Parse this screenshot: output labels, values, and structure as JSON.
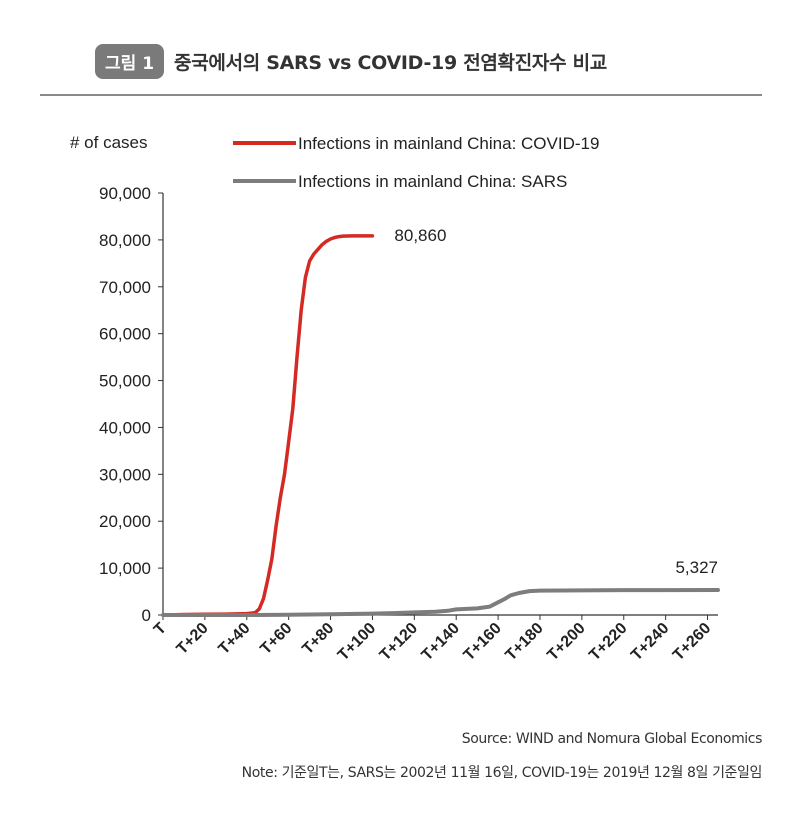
{
  "figure": {
    "badge": "그림 1",
    "title": "중국에서의 SARS vs COVID-19 전염확진자수 비교"
  },
  "chart_data": {
    "type": "line",
    "ylabel": "# of cases",
    "ylim": [
      0,
      90000
    ],
    "xlim": [
      0,
      265
    ],
    "y_ticks": [
      "0",
      "10,000",
      "20,000",
      "30,000",
      "40,000",
      "50,000",
      "60,000",
      "70,000",
      "80,000",
      "90,000"
    ],
    "x_ticks": [
      "T",
      "T+20",
      "T+40",
      "T+60",
      "T+80",
      "T+100",
      "T+120",
      "T+140",
      "T+160",
      "T+180",
      "T+200",
      "T+220",
      "T+240",
      "T+260"
    ],
    "legend": "top-center",
    "grid": false,
    "series": [
      {
        "name": "Infections in mainland China: COVID-19",
        "color": "#d42a24",
        "x": [
          0,
          10,
          20,
          30,
          40,
          44,
          46,
          48,
          50,
          52,
          54,
          56,
          58,
          60,
          62,
          64,
          66,
          68,
          70,
          72,
          74,
          76,
          78,
          80,
          82,
          84,
          86,
          88,
          90,
          95,
          100
        ],
        "y": [
          0,
          100,
          150,
          200,
          300,
          500,
          1300,
          3500,
          7500,
          12000,
          19000,
          25000,
          30000,
          37000,
          44000,
          55000,
          65000,
          72000,
          75500,
          77000,
          78000,
          79000,
          79700,
          80200,
          80500,
          80700,
          80800,
          80830,
          80850,
          80855,
          80860
        ],
        "end_label": "80,860"
      },
      {
        "name": "Infections in mainland China: SARS",
        "color": "#7d7d7d",
        "x": [
          0,
          40,
          60,
          80,
          100,
          110,
          120,
          130,
          136,
          140,
          145,
          150,
          156,
          160,
          163,
          166,
          170,
          175,
          180,
          200,
          220,
          240,
          265
        ],
        "y": [
          0,
          0,
          50,
          150,
          300,
          400,
          550,
          700,
          900,
          1200,
          1300,
          1400,
          1800,
          2700,
          3400,
          4200,
          4700,
          5100,
          5200,
          5250,
          5300,
          5320,
          5327
        ],
        "end_label": "5,327"
      }
    ]
  },
  "footer": {
    "source": "Source: WIND and Nomura Global Economics",
    "note": "Note: 기준일T는, SARS는 2002년 11월 16일,  COVID-19는 2019년 12월 8일 기준일임"
  }
}
